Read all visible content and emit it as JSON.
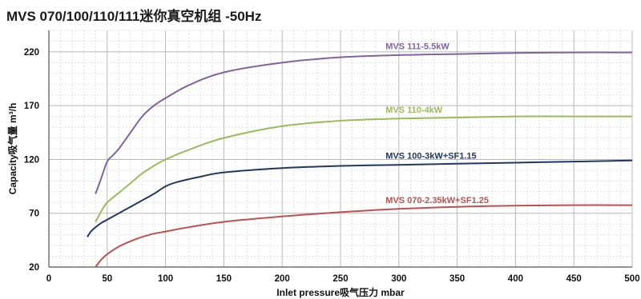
{
  "title": "MVS 070/100/110/111迷你真空机组 -50Hz",
  "chart_data": {
    "type": "line",
    "xlabel": "Inlet pressure吸气压力 mbar",
    "ylabel": "Capacity吸气量  m³/h",
    "xlim": [
      0,
      500
    ],
    "ylim": [
      20,
      240
    ],
    "x_ticks": [
      0,
      50,
      100,
      150,
      200,
      250,
      300,
      350,
      400,
      450,
      500
    ],
    "y_ticks": [
      20,
      70,
      120,
      170,
      220
    ],
    "grid": true,
    "legend": "inline labels",
    "series": [
      {
        "name": "MVS 111-5.5kW",
        "color": "#8064a2",
        "x": [
          40,
          45,
          50,
          55,
          60,
          70,
          80,
          90,
          100,
          120,
          150,
          200,
          250,
          300,
          350,
          400,
          450,
          500
        ],
        "y": [
          88,
          103,
          118,
          124,
          130,
          145,
          160,
          170,
          177,
          189,
          201,
          210,
          215,
          217,
          218,
          219,
          219.5,
          219.5
        ]
      },
      {
        "name": "MVS 110-4kW",
        "color": "#9bbb59",
        "x": [
          40,
          45,
          50,
          60,
          70,
          80,
          90,
          100,
          120,
          150,
          200,
          250,
          300,
          350,
          400,
          450,
          500
        ],
        "y": [
          62,
          72,
          80,
          89,
          98,
          107,
          114,
          120,
          129,
          140,
          151,
          156,
          158,
          159,
          160,
          160,
          160
        ]
      },
      {
        "name": "MVS 100-3kW+SF1.15",
        "color": "#1f3864",
        "x": [
          33,
          36,
          40,
          45,
          50,
          60,
          70,
          80,
          90,
          100,
          110,
          130,
          150,
          200,
          250,
          300,
          350,
          400,
          450,
          500
        ],
        "y": [
          48,
          53,
          57,
          61,
          64,
          70,
          76,
          82,
          88,
          95,
          99,
          104,
          108,
          112,
          114,
          115,
          116,
          117,
          118,
          119
        ]
      },
      {
        "name": "MVS 070-2.35kW+SF1.25",
        "color": "#c0504d",
        "x": [
          40,
          45,
          50,
          60,
          70,
          80,
          90,
          100,
          120,
          150,
          200,
          250,
          300,
          350,
          400,
          450,
          500
        ],
        "y": [
          20,
          27,
          32,
          39,
          44,
          48,
          51,
          53,
          57,
          62,
          67,
          71,
          74,
          76,
          77,
          77.5,
          77.5
        ]
      }
    ]
  }
}
